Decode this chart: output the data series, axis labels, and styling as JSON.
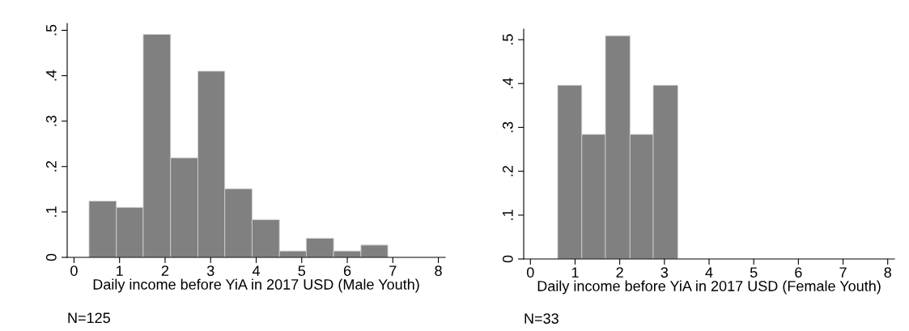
{
  "chart_data": [
    {
      "type": "histogram",
      "xlabel": "Daily income before YiA in 2017 USD (Male Youth)",
      "annotations": [
        "N=125"
      ],
      "color": "#808080",
      "bins": [
        0.33,
        0.93,
        1.52,
        2.12,
        2.72,
        3.31,
        3.91,
        4.51,
        5.1,
        5.7,
        6.3,
        6.89
      ],
      "values": [
        0.124,
        0.11,
        0.491,
        0.219,
        0.41,
        0.151,
        0.083,
        0.014,
        0.042,
        0.014,
        0.027
      ],
      "xlim": [
        -0.15,
        8.15
      ],
      "xticks": [
        0,
        1,
        2,
        3,
        4,
        5,
        6,
        7,
        8
      ],
      "ylim": [
        0,
        0.515
      ],
      "yticks": [
        {
          "value": 0,
          "label": "0"
        },
        {
          "value": 0.1,
          "label": ".1"
        },
        {
          "value": 0.2,
          "label": ".2"
        },
        {
          "value": 0.3,
          "label": ".3"
        },
        {
          "value": 0.4,
          "label": ".4"
        },
        {
          "value": 0.5,
          "label": ".5"
        }
      ],
      "grid": false
    },
    {
      "type": "histogram",
      "xlabel": "Daily income before YiA in 2017 USD (Female Youth)",
      "annotations": [
        "N=33"
      ],
      "color": "#808080",
      "bins": [
        0.61,
        1.15,
        1.68,
        2.23,
        2.75,
        3.3
      ],
      "values": [
        0.396,
        0.284,
        0.509,
        0.284,
        0.396
      ],
      "xlim": [
        -0.15,
        8.15
      ],
      "xticks": [
        0,
        1,
        2,
        3,
        4,
        5,
        6,
        7,
        8
      ],
      "ylim": [
        0,
        0.524
      ],
      "yticks": [
        {
          "value": 0,
          "label": "0"
        },
        {
          "value": 0.1,
          "label": ".1"
        },
        {
          "value": 0.2,
          "label": ".2"
        },
        {
          "value": 0.3,
          "label": ".3"
        },
        {
          "value": 0.4,
          "label": ".4"
        },
        {
          "value": 0.5,
          "label": ".5"
        }
      ],
      "grid": false
    }
  ]
}
